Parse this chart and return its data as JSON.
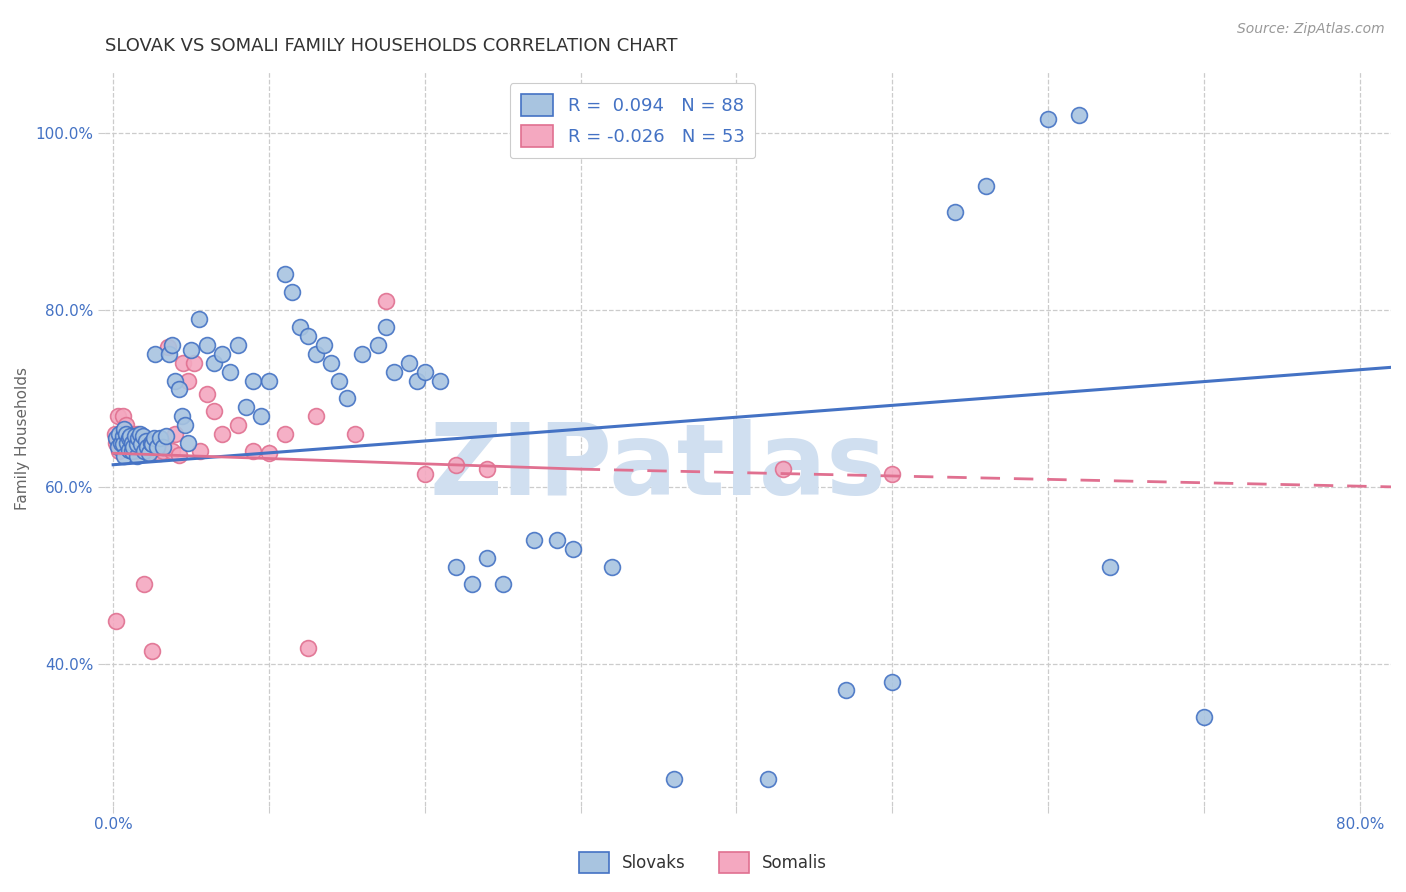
{
  "title": "SLOVAK VS SOMALI FAMILY HOUSEHOLDS CORRELATION CHART",
  "source": "Source: ZipAtlas.com",
  "ylabel_text": "Family Households",
  "xlim": [
    -0.005,
    0.82
  ],
  "ylim": [
    0.24,
    1.07
  ],
  "legend_r_slovak": " 0.094",
  "legend_n_slovak": "88",
  "legend_r_somali": "-0.026",
  "legend_n_somali": "53",
  "color_slovak_fill": "#a8c4e0",
  "color_slovak_edge": "#4472c4",
  "color_somali_fill": "#f4a8c0",
  "color_somali_edge": "#e07090",
  "color_line_slovak": "#4472c4",
  "color_line_somali": "#e07090",
  "sk_line_x0": 0.0,
  "sk_line_x1": 0.82,
  "sk_line_y0": 0.625,
  "sk_line_y1": 0.735,
  "so_line_solid_x0": 0.0,
  "so_line_solid_x1": 0.3,
  "so_line_solid_y0": 0.638,
  "so_line_solid_y1": 0.62,
  "so_line_dash_x0": 0.3,
  "so_line_dash_x1": 0.82,
  "so_line_dash_y0": 0.62,
  "so_line_dash_y1": 0.6,
  "grid_color": "#cccccc",
  "background_color": "#ffffff",
  "title_fontsize": 13,
  "source_fontsize": 10,
  "axis_label_fontsize": 11,
  "tick_label_fontsize": 11,
  "tick_label_color": "#4472c4",
  "watermark_color": "#d0dff0",
  "watermark_fontsize": 72,
  "scatter_size": 130,
  "slovak_x": [
    0.002,
    0.003,
    0.004,
    0.005,
    0.006,
    0.006,
    0.007,
    0.007,
    0.008,
    0.009,
    0.01,
    0.01,
    0.011,
    0.012,
    0.012,
    0.013,
    0.014,
    0.015,
    0.015,
    0.016,
    0.017,
    0.018,
    0.019,
    0.02,
    0.021,
    0.022,
    0.023,
    0.024,
    0.025,
    0.026,
    0.027,
    0.028,
    0.03,
    0.032,
    0.034,
    0.036,
    0.038,
    0.04,
    0.042,
    0.044,
    0.046,
    0.048,
    0.05,
    0.055,
    0.06,
    0.065,
    0.07,
    0.075,
    0.08,
    0.085,
    0.09,
    0.095,
    0.1,
    0.11,
    0.115,
    0.12,
    0.125,
    0.13,
    0.135,
    0.14,
    0.145,
    0.15,
    0.16,
    0.17,
    0.175,
    0.18,
    0.19,
    0.195,
    0.2,
    0.21,
    0.22,
    0.23,
    0.24,
    0.25,
    0.27,
    0.285,
    0.295,
    0.32,
    0.36,
    0.42,
    0.47,
    0.5,
    0.54,
    0.56,
    0.6,
    0.62,
    0.64,
    0.7
  ],
  "slovak_y": [
    0.655,
    0.645,
    0.66,
    0.65,
    0.658,
    0.648,
    0.665,
    0.635,
    0.66,
    0.65,
    0.642,
    0.655,
    0.658,
    0.64,
    0.65,
    0.645,
    0.658,
    0.635,
    0.648,
    0.655,
    0.66,
    0.648,
    0.658,
    0.64,
    0.652,
    0.645,
    0.638,
    0.65,
    0.648,
    0.655,
    0.75,
    0.645,
    0.655,
    0.645,
    0.658,
    0.75,
    0.76,
    0.72,
    0.71,
    0.68,
    0.67,
    0.65,
    0.755,
    0.79,
    0.76,
    0.74,
    0.75,
    0.73,
    0.76,
    0.69,
    0.72,
    0.68,
    0.72,
    0.84,
    0.82,
    0.78,
    0.77,
    0.75,
    0.76,
    0.74,
    0.72,
    0.7,
    0.75,
    0.76,
    0.78,
    0.73,
    0.74,
    0.72,
    0.73,
    0.72,
    0.51,
    0.49,
    0.52,
    0.49,
    0.54,
    0.54,
    0.53,
    0.51,
    0.27,
    0.27,
    0.37,
    0.38,
    0.91,
    0.94,
    1.015,
    1.02,
    0.51,
    0.34
  ],
  "somali_x": [
    0.001,
    0.002,
    0.003,
    0.004,
    0.005,
    0.006,
    0.007,
    0.008,
    0.009,
    0.01,
    0.011,
    0.012,
    0.013,
    0.014,
    0.015,
    0.016,
    0.017,
    0.018,
    0.019,
    0.02,
    0.022,
    0.024,
    0.026,
    0.028,
    0.03,
    0.032,
    0.035,
    0.038,
    0.04,
    0.042,
    0.045,
    0.048,
    0.052,
    0.056,
    0.06,
    0.065,
    0.07,
    0.08,
    0.09,
    0.1,
    0.11,
    0.13,
    0.155,
    0.175,
    0.2,
    0.22,
    0.24,
    0.43,
    0.5,
    0.002,
    0.02,
    0.025,
    0.125
  ],
  "somali_y": [
    0.66,
    0.65,
    0.68,
    0.64,
    0.66,
    0.68,
    0.655,
    0.67,
    0.645,
    0.66,
    0.648,
    0.66,
    0.65,
    0.64,
    0.66,
    0.648,
    0.645,
    0.658,
    0.648,
    0.655,
    0.64,
    0.648,
    0.638,
    0.648,
    0.638,
    0.64,
    0.758,
    0.64,
    0.66,
    0.636,
    0.74,
    0.72,
    0.74,
    0.64,
    0.705,
    0.686,
    0.66,
    0.67,
    0.64,
    0.638,
    0.66,
    0.68,
    0.66,
    0.81,
    0.614,
    0.625,
    0.62,
    0.62,
    0.614,
    0.448,
    0.49,
    0.415,
    0.418
  ]
}
